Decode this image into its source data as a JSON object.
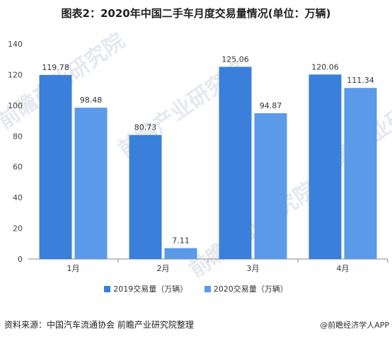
{
  "title": "图表2：2020年中国二手车月度交易量情况(单位：万辆)",
  "source": "资料来源：中国汽车流通协会 前瞻产业研究院整理",
  "brand": "@前瞻经济学人APP",
  "watermark": "前瞻产业研究院",
  "colors": {
    "series1": "#3a7fd9",
    "series2": "#5b9ae8",
    "axis": "#888888",
    "grid": "#e6e6e6"
  },
  "chart_data": {
    "type": "bar",
    "title": "图表2：2020年中国二手车月度交易量情况(单位：万辆)",
    "categories": [
      "1月",
      "2月",
      "3月",
      "4月"
    ],
    "series": [
      {
        "name": "2019交易量（万辆）",
        "values": [
          119.78,
          80.73,
          125.06,
          120.06
        ]
      },
      {
        "name": "2020交易量（万辆）",
        "values": [
          98.48,
          7.11,
          94.87,
          111.34
        ]
      }
    ],
    "yticks": [
      0,
      20,
      40,
      60,
      80,
      100,
      120,
      140
    ],
    "ylim": [
      0,
      140
    ],
    "grid": false,
    "legend": "bottom"
  }
}
